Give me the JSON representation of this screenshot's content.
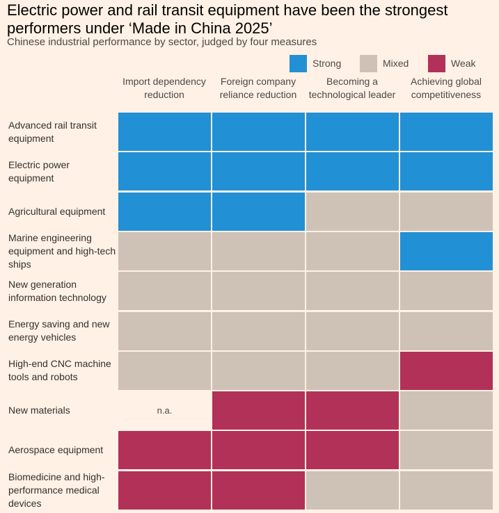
{
  "chart_data": {
    "type": "table",
    "title": "Electric power and rail transit equipment have been the strongest performers under ‘Made in China 2025’",
    "subtitle": "Chinese industrial performance by sector, judged by four measures",
    "legend": [
      {
        "key": "strong",
        "label": "Strong",
        "color": "#2290D4"
      },
      {
        "key": "mixed",
        "label": "Mixed",
        "color": "#CEC2B6"
      },
      {
        "key": "weak",
        "label": "Weak",
        "color": "#B23158"
      }
    ],
    "columns": [
      "Import dependency reduction",
      "Foreign company reliance reduction",
      "Becoming a technological leader",
      "Achieving global competitiveness"
    ],
    "rows": [
      {
        "label": "Advanced rail transit equipment",
        "values": [
          "strong",
          "strong",
          "strong",
          "strong"
        ]
      },
      {
        "label": "Electric power equipment",
        "values": [
          "strong",
          "strong",
          "strong",
          "strong"
        ]
      },
      {
        "label": "Agricultural equipment",
        "values": [
          "strong",
          "strong",
          "mixed",
          "mixed"
        ]
      },
      {
        "label": "Marine engineering equipment and high-tech ships",
        "values": [
          "mixed",
          "mixed",
          "mixed",
          "strong"
        ]
      },
      {
        "label": "New generation information technology",
        "values": [
          "mixed",
          "mixed",
          "mixed",
          "mixed"
        ]
      },
      {
        "label": "Energy saving and new energy vehicles",
        "values": [
          "mixed",
          "mixed",
          "mixed",
          "mixed"
        ]
      },
      {
        "label": "High-end CNC machine tools and robots",
        "values": [
          "mixed",
          "mixed",
          "mixed",
          "weak"
        ]
      },
      {
        "label": "New materials",
        "values": [
          "na",
          "weak",
          "weak",
          "mixed"
        ]
      },
      {
        "label": "Aerospace equipment",
        "values": [
          "weak",
          "weak",
          "weak",
          "mixed"
        ]
      },
      {
        "label": "Biomedicine and high-performance medical devices",
        "values": [
          "weak",
          "weak",
          "mixed",
          "mixed"
        ]
      }
    ],
    "na_label": "n.a."
  }
}
